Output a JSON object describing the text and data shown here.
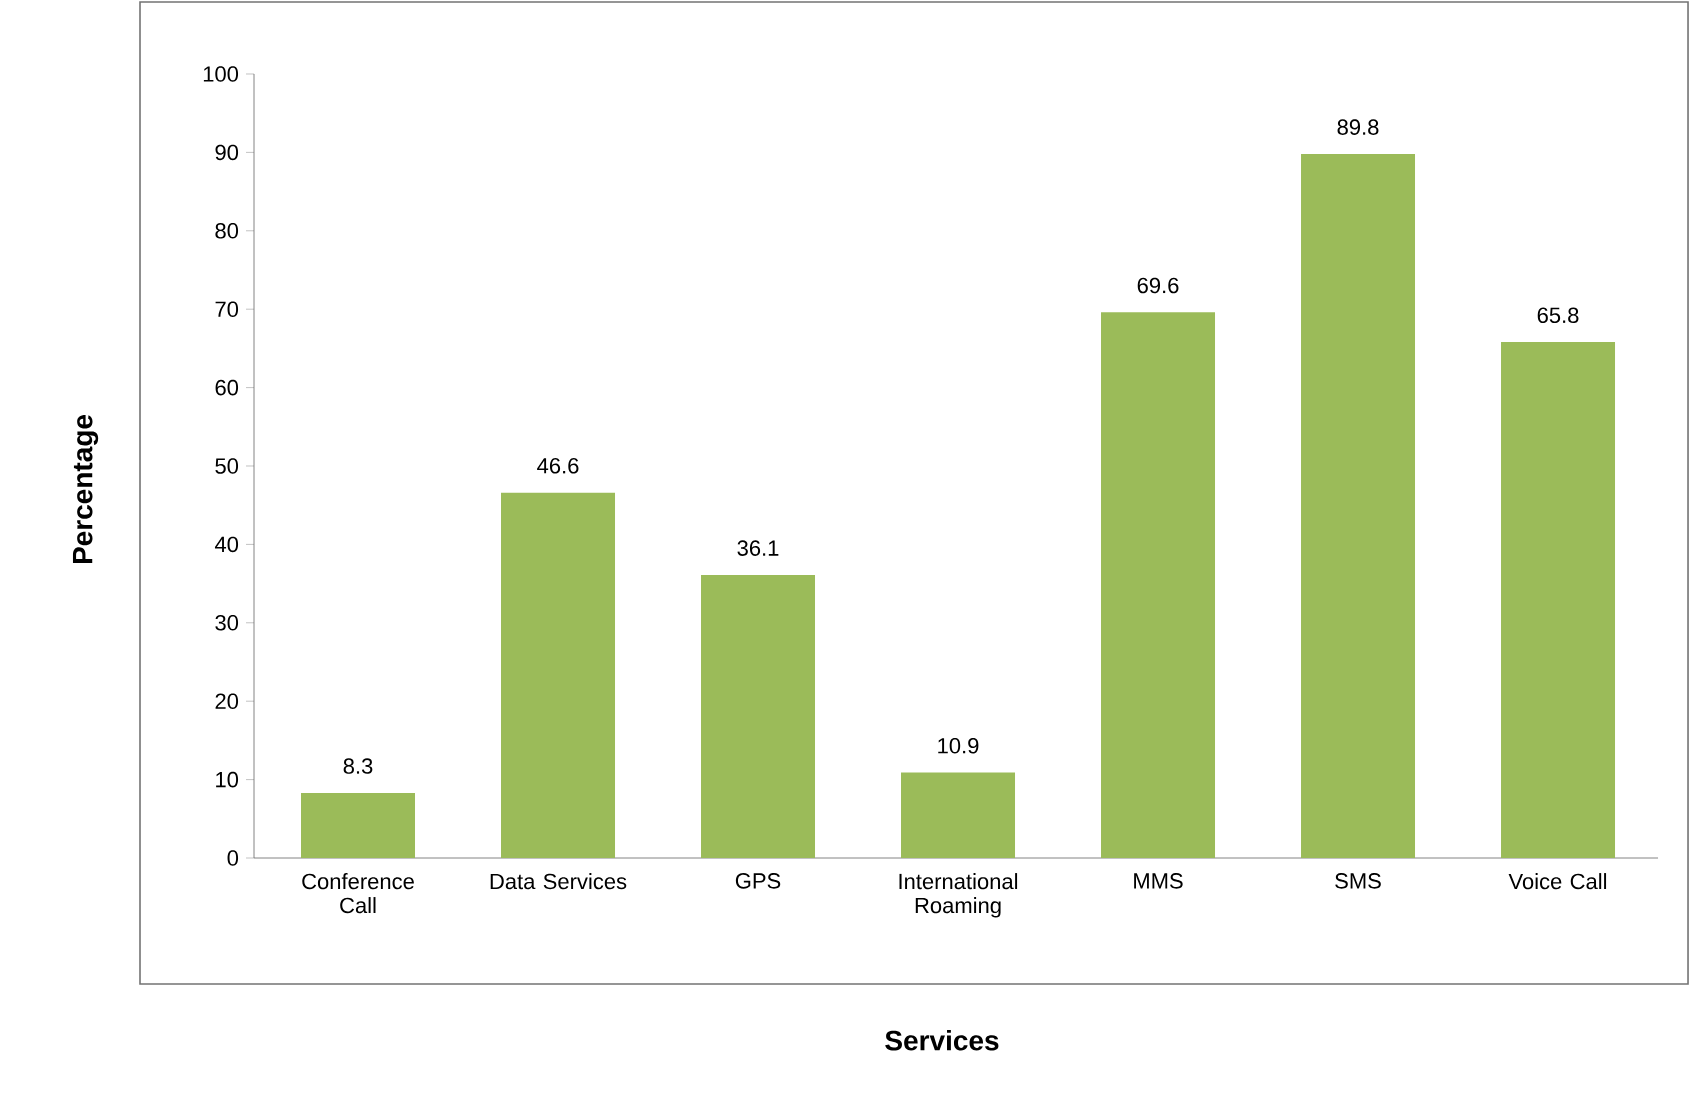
{
  "chart_data": {
    "type": "bar",
    "xlabel": "Services",
    "ylabel": "Percentage",
    "categories": [
      "Conference Call",
      "Data Services",
      "GPS",
      "International Roaming",
      "MMS",
      "SMS",
      "Voice Call"
    ],
    "values": [
      8.3,
      46.6,
      36.1,
      10.9,
      69.6,
      89.8,
      65.8
    ],
    "color": "#9bbb59",
    "ylim": [
      0,
      100
    ],
    "yticks": [
      0,
      10,
      20,
      30,
      40,
      50,
      60,
      70,
      80,
      90,
      100
    ],
    "data_labels": true,
    "grid": false,
    "legend": false
  }
}
